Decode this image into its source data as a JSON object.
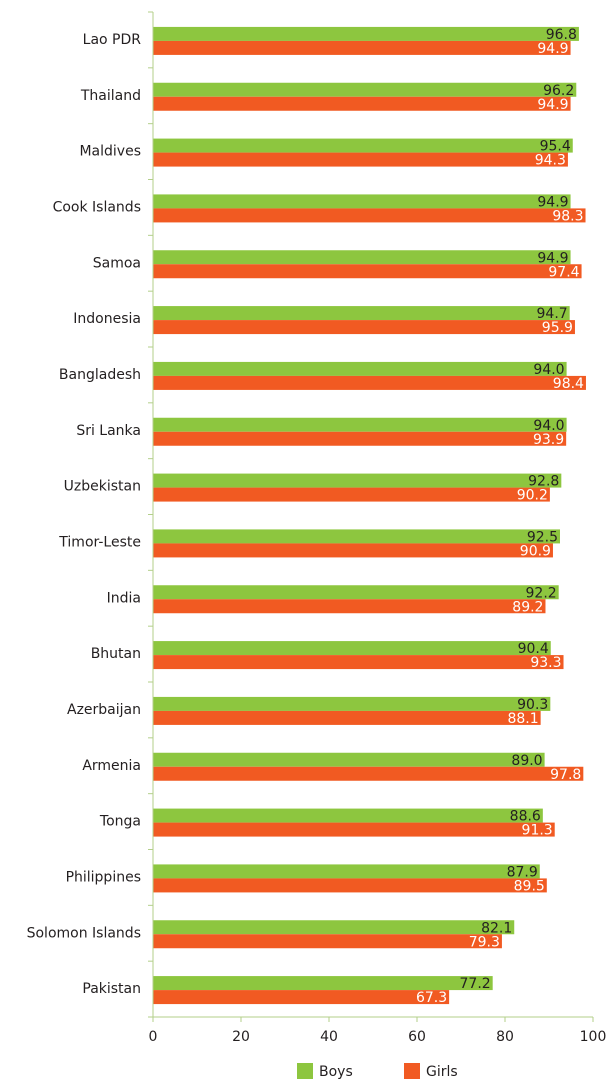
{
  "chart_data": {
    "type": "bar",
    "orientation": "horizontal",
    "categories": [
      "Lao PDR",
      "Thailand",
      "Maldives",
      "Cook Islands",
      "Samoa",
      "Indonesia",
      "Bangladesh",
      "Sri Lanka",
      "Uzbekistan",
      "Timor-Leste",
      "India",
      "Bhutan",
      "Azerbaijan",
      "Armenia",
      "Tonga",
      "Philippines",
      "Solomon Islands",
      "Pakistan"
    ],
    "series": [
      {
        "name": "Boys",
        "color": "#8dc63f",
        "values": [
          96.8,
          96.2,
          95.4,
          94.9,
          94.9,
          94.7,
          94.0,
          94.0,
          92.8,
          92.5,
          92.2,
          90.4,
          90.3,
          89.0,
          88.6,
          87.9,
          82.1,
          77.2
        ],
        "value_labels": [
          "96.8",
          "96.2",
          "95.4",
          "94.9",
          "94.9",
          "94.7",
          "94.0",
          "94.0",
          "92.8",
          "92.5",
          "92.2",
          "90.4",
          "90.3",
          "89.0",
          "88.6",
          "87.9",
          "82.1",
          "77.2"
        ]
      },
      {
        "name": "Girls",
        "color": "#f15a22",
        "values": [
          94.9,
          94.9,
          94.3,
          98.3,
          97.4,
          95.9,
          98.4,
          93.9,
          90.2,
          90.9,
          89.2,
          93.3,
          88.1,
          97.8,
          91.3,
          89.5,
          79.3,
          67.3
        ],
        "value_labels": [
          "94.9",
          "94.9",
          "94.3",
          "98.3",
          "97.4",
          "95.9",
          "98.4",
          "93.9",
          "90.2",
          "90.9",
          "89.2",
          "93.3",
          "88.1",
          "97.8",
          "91.3",
          "89.5",
          "79.3",
          "67.3"
        ]
      }
    ],
    "xlim": [
      0,
      100
    ],
    "xticks": [
      0,
      20,
      40,
      60,
      80,
      100
    ],
    "legend": "bottom"
  }
}
